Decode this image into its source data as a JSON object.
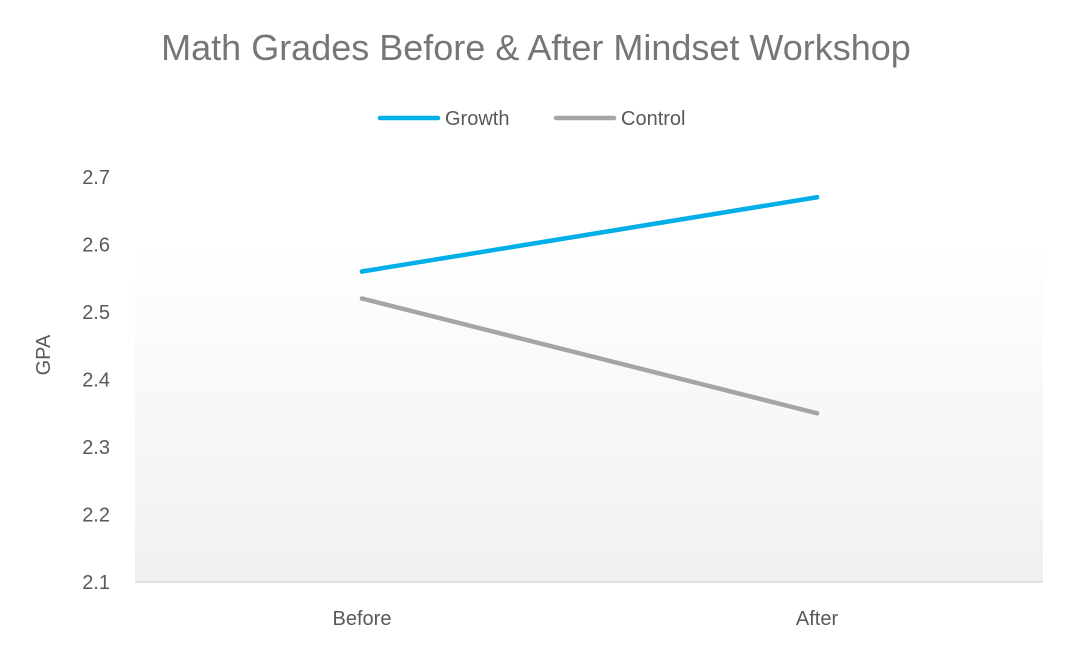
{
  "chart_data": {
    "type": "line",
    "title": "Math Grades Before & After Mindset Workshop",
    "xlabel": "",
    "ylabel": "GPA",
    "categories": [
      "Before",
      "After"
    ],
    "ylim": [
      2.1,
      2.7
    ],
    "yticks": [
      "2.1",
      "2.2",
      "2.3",
      "2.4",
      "2.5",
      "2.6",
      "2.7"
    ],
    "grid": false,
    "legend_position": "top",
    "series": [
      {
        "name": "Growth",
        "values": [
          2.56,
          2.67
        ],
        "color": "#00aee8"
      },
      {
        "name": "Control",
        "values": [
          2.52,
          2.35
        ],
        "color": "#a5a5a5"
      }
    ],
    "colors": {
      "text": "#595959",
      "title": "#767676",
      "axis_line": "#d9d9d9",
      "plot_gradient_top": "#ffffff",
      "plot_gradient_bottom": "#f0f0f0"
    }
  }
}
